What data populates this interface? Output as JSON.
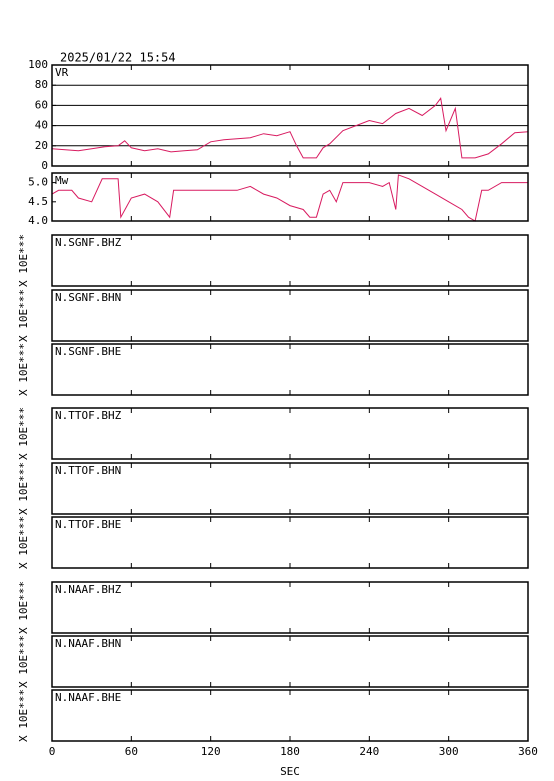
{
  "timestamp": "2025/01/22 15:54",
  "time_axis": {
    "xlim": [
      0,
      360
    ],
    "xticks": [
      0,
      60,
      120,
      180,
      240,
      300,
      360
    ],
    "xlabel": "SEC"
  },
  "chart_data": [
    {
      "type": "line",
      "grid": true,
      "x": [
        0,
        10,
        20,
        30,
        40,
        50,
        55,
        60,
        70,
        80,
        90,
        100,
        110,
        120,
        130,
        140,
        150,
        160,
        170,
        180,
        185,
        190,
        200,
        205,
        210,
        220,
        230,
        240,
        250,
        260,
        270,
        280,
        290,
        294,
        298,
        305,
        310,
        320,
        330,
        340,
        350,
        360
      ],
      "series": [
        {
          "name": "VR",
          "color": "#d81b60",
          "values": [
            17,
            16,
            15,
            17,
            19,
            20,
            25,
            18,
            15,
            17,
            14,
            15,
            16,
            24,
            26,
            27,
            28,
            32,
            30,
            34,
            20,
            8,
            8,
            18,
            22,
            35,
            40,
            45,
            42,
            52,
            57,
            50,
            60,
            67,
            35,
            57,
            8,
            8,
            12,
            22,
            33,
            34
          ]
        }
      ],
      "ylim": [
        0,
        100
      ],
      "yticks": [
        0,
        20,
        40,
        60,
        80,
        100
      ]
    },
    {
      "type": "line",
      "grid": false,
      "x": [
        0,
        5,
        15,
        20,
        30,
        38,
        50,
        52,
        60,
        70,
        80,
        89,
        92,
        100,
        120,
        140,
        150,
        160,
        170,
        180,
        190,
        195,
        200,
        205,
        210,
        215,
        220,
        230,
        240,
        250,
        255,
        260,
        262,
        270,
        280,
        290,
        300,
        310,
        315,
        320,
        325,
        330,
        340,
        350,
        360
      ],
      "series": [
        {
          "name": "Mw",
          "color": "#d81b60",
          "values": [
            4.7,
            4.8,
            4.8,
            4.6,
            4.5,
            5.1,
            5.1,
            4.1,
            4.6,
            4.7,
            4.5,
            4.1,
            4.8,
            4.8,
            4.8,
            4.8,
            4.9,
            4.7,
            4.6,
            4.4,
            4.3,
            4.1,
            4.1,
            4.7,
            4.8,
            4.5,
            5.0,
            5.0,
            5.0,
            4.9,
            5.0,
            4.3,
            5.2,
            5.1,
            4.9,
            4.7,
            4.5,
            4.3,
            4.1,
            4.0,
            4.8,
            4.8,
            5.0,
            5.0,
            5.0
          ]
        }
      ],
      "ylim": [
        4,
        5.25
      ],
      "yticks": [
        {
          "value": 4,
          "label": "4.0"
        },
        4.5,
        {
          "value": 5,
          "label": "5.0"
        }
      ]
    }
  ],
  "panels": [
    {
      "label": "N.SGNF.BHZ",
      "amplitude_label": "X 10E***"
    },
    {
      "label": "N.SGNF.BHN",
      "amplitude_label": "X 10E***"
    },
    {
      "label": "N.SGNF.BHE",
      "amplitude_label": "X 10E***"
    },
    {
      "label": "N.TTOF.BHZ",
      "amplitude_label": "X 10E***"
    },
    {
      "label": "N.TTOF.BHN",
      "amplitude_label": "X 10E***"
    },
    {
      "label": "N.TTOF.BHE",
      "amplitude_label": "X 10E***"
    },
    {
      "label": "N.NAAF.BHZ",
      "amplitude_label": "X 10E***"
    },
    {
      "label": "N.NAAF.BHN",
      "amplitude_label": "X 10E***"
    },
    {
      "label": "N.NAAF.BHE",
      "amplitude_label": "X 10E***"
    }
  ]
}
